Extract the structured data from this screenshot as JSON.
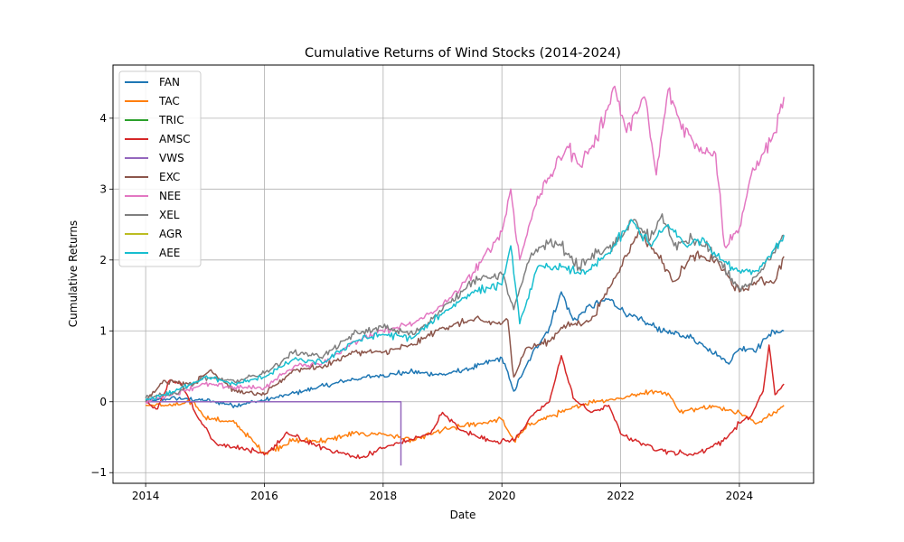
{
  "chart_data": {
    "type": "line",
    "title": "Cumulative Returns of Wind Stocks (2014-2024)",
    "xlabel": "Date",
    "ylabel": "Cumulative Returns",
    "xlim": [
      2013.45,
      2025.25
    ],
    "ylim": [
      -1.15,
      4.75
    ],
    "x_ticks": [
      2014,
      2016,
      2018,
      2020,
      2022,
      2024
    ],
    "x_tick_labels": [
      "2014",
      "2016",
      "2018",
      "2020",
      "2022",
      "2024"
    ],
    "y_ticks": [
      -1,
      0,
      1,
      2,
      3,
      4
    ],
    "y_tick_labels": [
      "−1",
      "0",
      "1",
      "2",
      "3",
      "4"
    ],
    "grid": true,
    "legend_position": "top-left",
    "series": [
      {
        "name": "FAN",
        "color": "#1f77b4",
        "points": [
          [
            2014.0,
            0.0
          ],
          [
            2014.5,
            0.05
          ],
          [
            2015.0,
            0.02
          ],
          [
            2015.5,
            -0.05
          ],
          [
            2016.0,
            0.02
          ],
          [
            2016.5,
            0.12
          ],
          [
            2017.0,
            0.22
          ],
          [
            2017.5,
            0.32
          ],
          [
            2018.0,
            0.38
          ],
          [
            2018.5,
            0.42
          ],
          [
            2019.0,
            0.38
          ],
          [
            2019.5,
            0.48
          ],
          [
            2020.0,
            0.62
          ],
          [
            2020.2,
            0.15
          ],
          [
            2020.5,
            0.65
          ],
          [
            2020.8,
            1.05
          ],
          [
            2021.0,
            1.55
          ],
          [
            2021.2,
            1.15
          ],
          [
            2021.5,
            1.35
          ],
          [
            2021.8,
            1.45
          ],
          [
            2022.0,
            1.3
          ],
          [
            2022.3,
            1.15
          ],
          [
            2022.6,
            1.05
          ],
          [
            2022.9,
            0.95
          ],
          [
            2023.2,
            0.9
          ],
          [
            2023.5,
            0.75
          ],
          [
            2023.8,
            0.55
          ],
          [
            2024.0,
            0.75
          ],
          [
            2024.3,
            0.75
          ],
          [
            2024.5,
            0.95
          ],
          [
            2024.75,
            1.0
          ]
        ]
      },
      {
        "name": "TAC",
        "color": "#ff7f0e",
        "points": [
          [
            2014.0,
            -0.05
          ],
          [
            2014.5,
            -0.05
          ],
          [
            2014.8,
            0.0
          ],
          [
            2015.0,
            -0.22
          ],
          [
            2015.5,
            -0.3
          ],
          [
            2016.0,
            -0.72
          ],
          [
            2016.5,
            -0.55
          ],
          [
            2017.0,
            -0.55
          ],
          [
            2017.5,
            -0.45
          ],
          [
            2018.0,
            -0.45
          ],
          [
            2018.5,
            -0.55
          ],
          [
            2019.0,
            -0.4
          ],
          [
            2019.5,
            -0.32
          ],
          [
            2020.0,
            -0.25
          ],
          [
            2020.2,
            -0.55
          ],
          [
            2020.5,
            -0.3
          ],
          [
            2021.0,
            -0.15
          ],
          [
            2021.5,
            0.0
          ],
          [
            2022.0,
            0.05
          ],
          [
            2022.5,
            0.15
          ],
          [
            2022.8,
            0.12
          ],
          [
            2023.0,
            -0.15
          ],
          [
            2023.5,
            -0.05
          ],
          [
            2024.0,
            -0.15
          ],
          [
            2024.3,
            -0.3
          ],
          [
            2024.6,
            -0.15
          ],
          [
            2024.75,
            -0.05
          ]
        ]
      },
      {
        "name": "TRIC",
        "color": "#2ca02c",
        "points": []
      },
      {
        "name": "AMSC",
        "color": "#d62728",
        "points": [
          [
            2014.0,
            0.0
          ],
          [
            2014.2,
            -0.1
          ],
          [
            2014.4,
            0.3
          ],
          [
            2014.6,
            0.25
          ],
          [
            2014.9,
            -0.25
          ],
          [
            2015.2,
            -0.6
          ],
          [
            2015.6,
            -0.65
          ],
          [
            2016.0,
            -0.75
          ],
          [
            2016.4,
            -0.45
          ],
          [
            2016.8,
            -0.6
          ],
          [
            2017.2,
            -0.7
          ],
          [
            2017.6,
            -0.8
          ],
          [
            2018.0,
            -0.65
          ],
          [
            2018.4,
            -0.55
          ],
          [
            2018.8,
            -0.45
          ],
          [
            2019.0,
            -0.15
          ],
          [
            2019.3,
            -0.4
          ],
          [
            2019.8,
            -0.55
          ],
          [
            2020.2,
            -0.55
          ],
          [
            2020.5,
            -0.2
          ],
          [
            2020.8,
            0.0
          ],
          [
            2021.0,
            0.65
          ],
          [
            2021.2,
            0.05
          ],
          [
            2021.5,
            -0.15
          ],
          [
            2021.8,
            -0.05
          ],
          [
            2022.0,
            -0.45
          ],
          [
            2022.4,
            -0.6
          ],
          [
            2022.8,
            -0.7
          ],
          [
            2023.2,
            -0.75
          ],
          [
            2023.5,
            -0.65
          ],
          [
            2023.8,
            -0.5
          ],
          [
            2024.0,
            -0.3
          ],
          [
            2024.2,
            -0.2
          ],
          [
            2024.4,
            0.15
          ],
          [
            2024.5,
            0.8
          ],
          [
            2024.6,
            0.1
          ],
          [
            2024.75,
            0.25
          ]
        ]
      },
      {
        "name": "VWS",
        "color": "#9467bd",
        "points": [
          [
            2014.0,
            0.0
          ],
          [
            2018.3,
            0.0
          ],
          [
            2018.3,
            -0.9
          ]
        ]
      },
      {
        "name": "EXC",
        "color": "#8c564b",
        "points": [
          [
            2014.0,
            0.0
          ],
          [
            2014.3,
            0.3
          ],
          [
            2014.8,
            0.25
          ],
          [
            2015.1,
            0.45
          ],
          [
            2015.5,
            0.15
          ],
          [
            2016.0,
            0.1
          ],
          [
            2016.5,
            0.45
          ],
          [
            2017.0,
            0.5
          ],
          [
            2017.5,
            0.7
          ],
          [
            2018.0,
            0.7
          ],
          [
            2018.5,
            0.8
          ],
          [
            2019.0,
            1.05
          ],
          [
            2019.5,
            1.15
          ],
          [
            2020.0,
            1.1
          ],
          [
            2020.1,
            1.15
          ],
          [
            2020.2,
            0.35
          ],
          [
            2020.4,
            0.75
          ],
          [
            2020.8,
            0.85
          ],
          [
            2021.0,
            1.05
          ],
          [
            2021.5,
            1.15
          ],
          [
            2022.0,
            1.9
          ],
          [
            2022.3,
            2.4
          ],
          [
            2022.6,
            2.1
          ],
          [
            2022.9,
            1.7
          ],
          [
            2023.2,
            2.05
          ],
          [
            2023.6,
            2.0
          ],
          [
            2024.0,
            1.55
          ],
          [
            2024.3,
            1.7
          ],
          [
            2024.6,
            1.7
          ],
          [
            2024.75,
            2.05
          ]
        ]
      },
      {
        "name": "NEE",
        "color": "#e377c2",
        "points": [
          [
            2014.0,
            0.0
          ],
          [
            2014.5,
            0.12
          ],
          [
            2015.0,
            0.25
          ],
          [
            2015.5,
            0.2
          ],
          [
            2016.0,
            0.2
          ],
          [
            2016.5,
            0.5
          ],
          [
            2017.0,
            0.55
          ],
          [
            2017.5,
            0.85
          ],
          [
            2018.0,
            1.0
          ],
          [
            2018.5,
            1.1
          ],
          [
            2019.0,
            1.35
          ],
          [
            2019.5,
            1.8
          ],
          [
            2020.0,
            2.4
          ],
          [
            2020.15,
            3.0
          ],
          [
            2020.3,
            2.0
          ],
          [
            2020.6,
            2.9
          ],
          [
            2020.9,
            3.3
          ],
          [
            2021.1,
            3.6
          ],
          [
            2021.3,
            3.35
          ],
          [
            2021.6,
            3.7
          ],
          [
            2021.9,
            4.45
          ],
          [
            2022.1,
            3.8
          ],
          [
            2022.4,
            4.3
          ],
          [
            2022.6,
            3.2
          ],
          [
            2022.8,
            4.4
          ],
          [
            2023.0,
            3.95
          ],
          [
            2023.3,
            3.6
          ],
          [
            2023.6,
            3.5
          ],
          [
            2023.75,
            2.2
          ],
          [
            2024.0,
            2.45
          ],
          [
            2024.2,
            3.2
          ],
          [
            2024.4,
            3.5
          ],
          [
            2024.6,
            3.8
          ],
          [
            2024.75,
            4.3
          ]
        ]
      },
      {
        "name": "XEL",
        "color": "#7f7f7f",
        "points": [
          [
            2014.0,
            0.05
          ],
          [
            2014.5,
            0.12
          ],
          [
            2015.0,
            0.35
          ],
          [
            2015.5,
            0.28
          ],
          [
            2016.0,
            0.4
          ],
          [
            2016.5,
            0.7
          ],
          [
            2017.0,
            0.65
          ],
          [
            2017.5,
            0.95
          ],
          [
            2018.0,
            1.05
          ],
          [
            2018.5,
            0.95
          ],
          [
            2019.0,
            1.3
          ],
          [
            2019.5,
            1.7
          ],
          [
            2020.0,
            1.8
          ],
          [
            2020.2,
            1.3
          ],
          [
            2020.5,
            2.1
          ],
          [
            2020.8,
            2.25
          ],
          [
            2021.0,
            2.2
          ],
          [
            2021.3,
            1.9
          ],
          [
            2021.6,
            2.1
          ],
          [
            2021.9,
            2.2
          ],
          [
            2022.2,
            2.55
          ],
          [
            2022.5,
            2.3
          ],
          [
            2022.7,
            2.65
          ],
          [
            2022.9,
            2.2
          ],
          [
            2023.2,
            2.3
          ],
          [
            2023.5,
            2.15
          ],
          [
            2023.8,
            1.8
          ],
          [
            2024.0,
            1.6
          ],
          [
            2024.2,
            1.65
          ],
          [
            2024.5,
            2.0
          ],
          [
            2024.75,
            2.35
          ]
        ]
      },
      {
        "name": "AGR",
        "color": "#bcbd22",
        "points": []
      },
      {
        "name": "AEE",
        "color": "#17becf",
        "points": [
          [
            2014.0,
            0.02
          ],
          [
            2014.5,
            0.15
          ],
          [
            2015.0,
            0.35
          ],
          [
            2015.5,
            0.25
          ],
          [
            2016.0,
            0.35
          ],
          [
            2016.5,
            0.6
          ],
          [
            2017.0,
            0.55
          ],
          [
            2017.5,
            0.85
          ],
          [
            2018.0,
            0.95
          ],
          [
            2018.5,
            0.9
          ],
          [
            2019.0,
            1.25
          ],
          [
            2019.5,
            1.55
          ],
          [
            2020.0,
            1.65
          ],
          [
            2020.15,
            2.2
          ],
          [
            2020.3,
            1.1
          ],
          [
            2020.6,
            1.9
          ],
          [
            2021.0,
            1.9
          ],
          [
            2021.4,
            1.8
          ],
          [
            2021.8,
            2.1
          ],
          [
            2022.2,
            2.55
          ],
          [
            2022.5,
            2.2
          ],
          [
            2022.8,
            2.5
          ],
          [
            2023.1,
            2.2
          ],
          [
            2023.4,
            2.3
          ],
          [
            2023.7,
            2.0
          ],
          [
            2024.0,
            1.85
          ],
          [
            2024.3,
            1.85
          ],
          [
            2024.5,
            2.05
          ],
          [
            2024.75,
            2.35
          ]
        ]
      }
    ]
  }
}
